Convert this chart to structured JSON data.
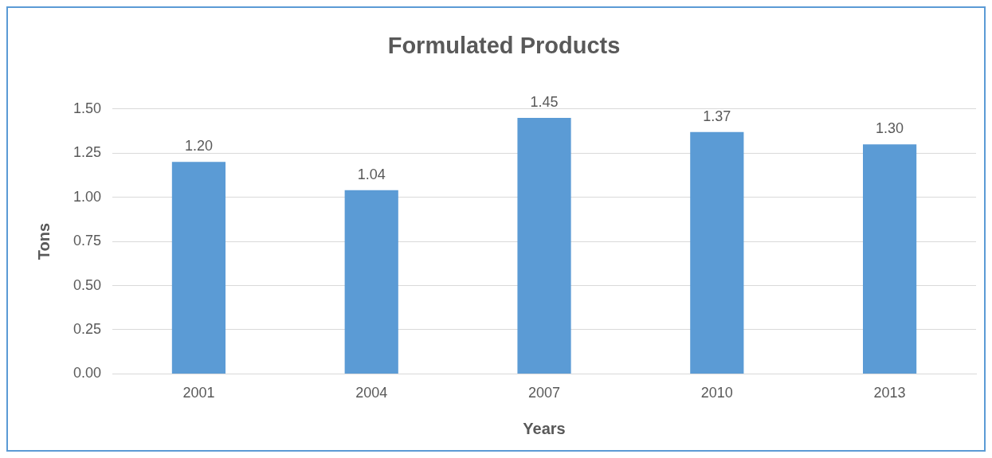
{
  "chart_data": {
    "type": "bar",
    "title": "Formulated Products",
    "xlabel": "Years",
    "ylabel": "Tons",
    "categories": [
      "2001",
      "2004",
      "2007",
      "2010",
      "2013"
    ],
    "values": [
      1.2,
      1.04,
      1.45,
      1.37,
      1.3
    ],
    "value_labels": [
      "1.20",
      "1.04",
      "1.45",
      "1.37",
      "1.30"
    ],
    "color": "#5b9bd5",
    "ylim": [
      0,
      1.5
    ],
    "yticks": [
      {
        "value": 0,
        "label": "0.00"
      },
      {
        "value": 0.25,
        "label": "0.25"
      },
      {
        "value": 0.5,
        "label": "0.50"
      },
      {
        "value": 0.75,
        "label": "0.75"
      },
      {
        "value": 1,
        "label": "1.00"
      },
      {
        "value": 1.25,
        "label": "1.25"
      },
      {
        "value": 1.5,
        "label": "1.50"
      }
    ],
    "grid": "y",
    "legend": false
  }
}
